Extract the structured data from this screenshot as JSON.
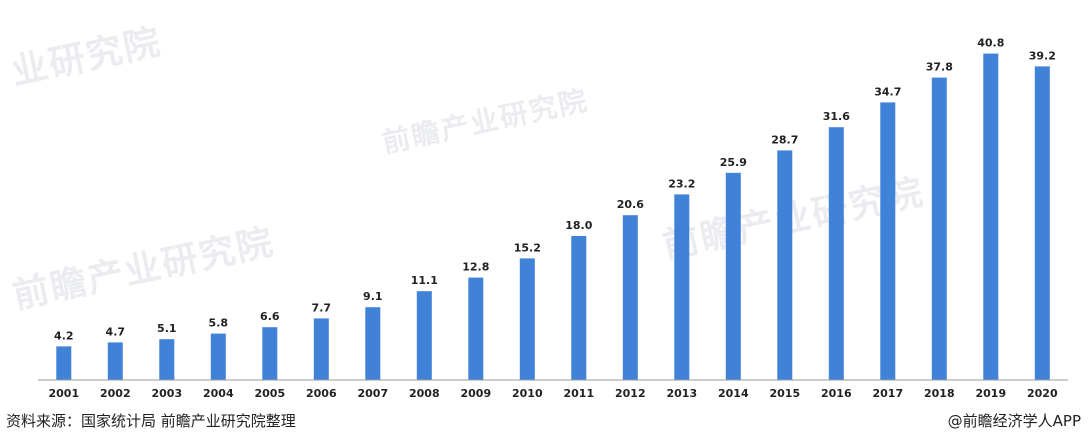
{
  "watermark": {
    "text1": "业研究院",
    "text2": "前瞻产业研究院",
    "text3": "前瞻产业研究院",
    "text4": "前瞻产业研究院"
  },
  "footer": {
    "source": "资料来源：国家统计局 前瞻产业研究院整理",
    "brand": "@前瞻经济学人APP"
  },
  "chart_data": {
    "type": "bar",
    "categories": [
      "2001",
      "2002",
      "2003",
      "2004",
      "2005",
      "2006",
      "2007",
      "2008",
      "2009",
      "2010",
      "2011",
      "2012",
      "2013",
      "2014",
      "2015",
      "2016",
      "2017",
      "2018",
      "2019",
      "2020"
    ],
    "values": [
      4.2,
      4.7,
      5.1,
      5.8,
      6.6,
      7.7,
      9.1,
      11.1,
      12.8,
      15.2,
      18.0,
      20.6,
      23.2,
      25.9,
      28.7,
      31.6,
      34.7,
      37.8,
      40.8,
      39.2
    ],
    "value_labels": [
      "4.2",
      "4.7",
      "5.1",
      "5.8",
      "6.6",
      "7.7",
      "9.1",
      "11.1",
      "12.8",
      "15.2",
      "18.0",
      "20.6",
      "23.2",
      "25.9",
      "28.7",
      "31.6",
      "34.7",
      "37.8",
      "40.8",
      "39.2"
    ],
    "title": "",
    "xlabel": "",
    "ylabel": "",
    "ylim": [
      0,
      42
    ],
    "grid": false,
    "bar_color": "#3f82d8",
    "axis_color": "#999999"
  }
}
